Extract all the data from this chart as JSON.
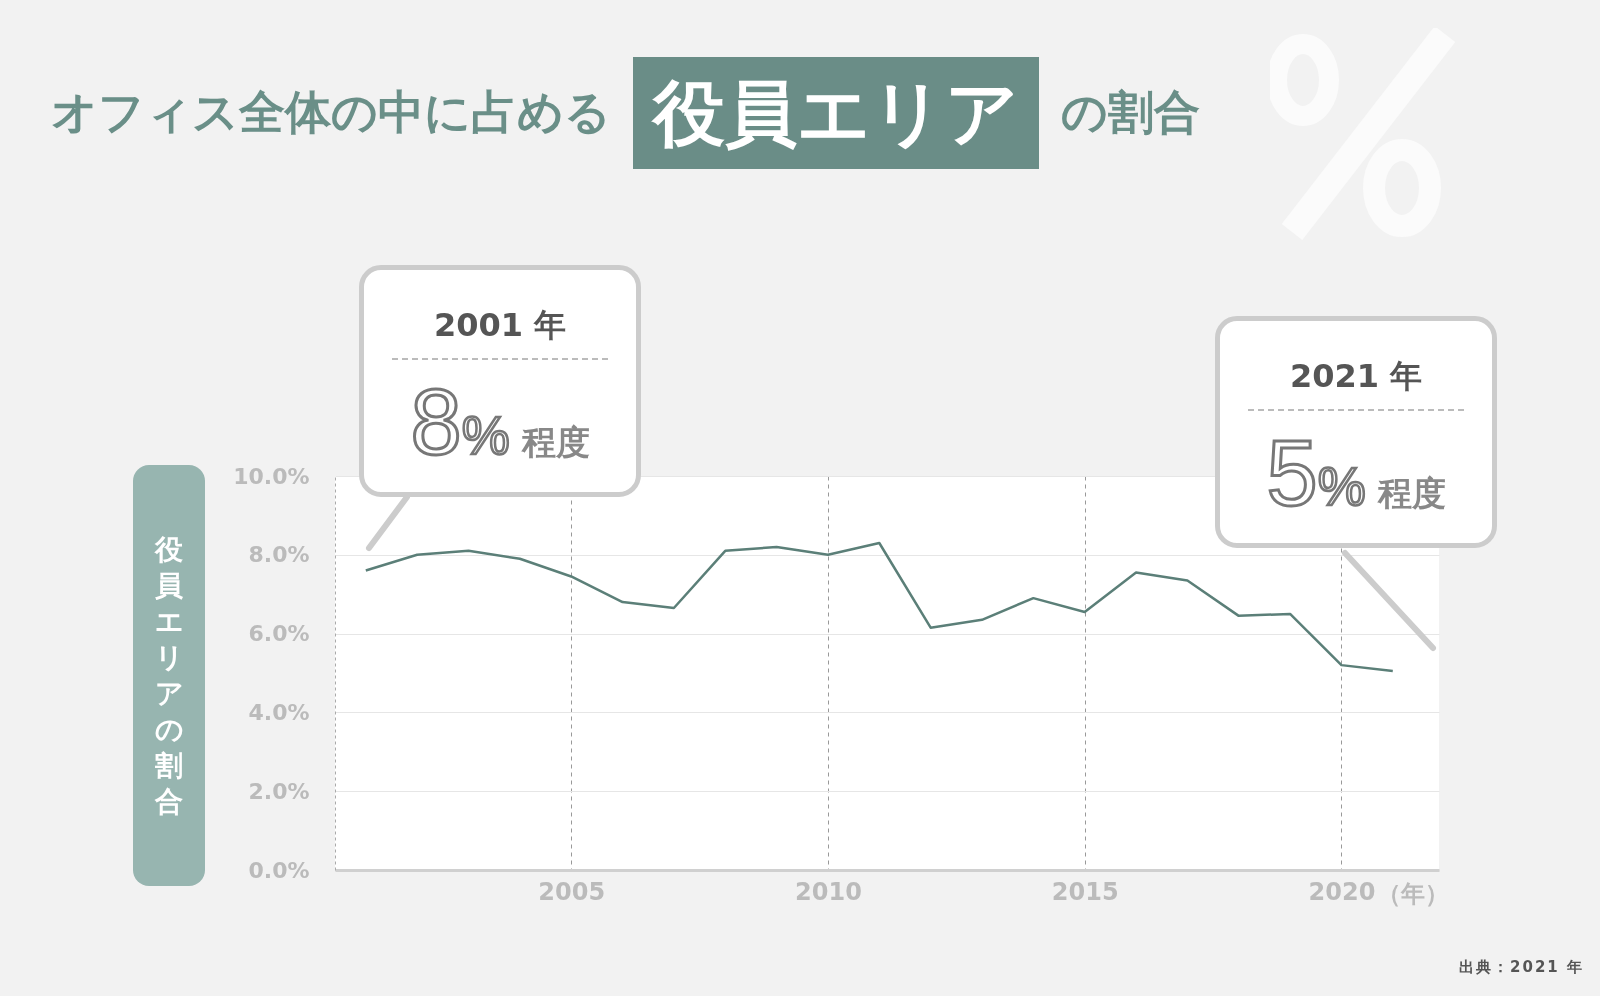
{
  "chart_data": {
    "type": "line",
    "title": "オフィス全体の中に占める 役員エリア の割合",
    "ylabel": "役員エリアの割合",
    "xlabel": "（年）",
    "x": [
      2001,
      2002,
      2003,
      2004,
      2005,
      2006,
      2007,
      2008,
      2009,
      2010,
      2011,
      2012,
      2013,
      2014,
      2015,
      2016,
      2017,
      2018,
      2019,
      2020,
      2021
    ],
    "series": [
      {
        "color": "#5b7f78",
        "values": [
          7.6,
          8.0,
          8.1,
          7.9,
          7.45,
          6.8,
          6.65,
          8.1,
          8.2,
          8.0,
          8.3,
          6.15,
          6.35,
          6.9,
          6.55,
          7.55,
          7.35,
          6.45,
          6.5,
          5.2,
          5.05
        ]
      }
    ],
    "xlim": [
      2000.4,
      2021.9
    ],
    "xticks": [
      2005,
      2010,
      2015,
      2020
    ],
    "ylim": [
      0,
      10
    ],
    "yticks": [
      {
        "value": 0,
        "label": "0.0%"
      },
      {
        "value": 2,
        "label": "2.0%"
      },
      {
        "value": 4,
        "label": "4.0%"
      },
      {
        "value": 6,
        "label": "6.0%"
      },
      {
        "value": 8,
        "label": "8.0%"
      },
      {
        "value": 10,
        "label": "10.0%"
      }
    ],
    "grid": true,
    "marker": "none",
    "line_style": "solid",
    "annotations": [
      "2001 年",
      "8% 程度",
      "2021 年",
      "5% 程度",
      "出典：2021 年"
    ]
  }
}
